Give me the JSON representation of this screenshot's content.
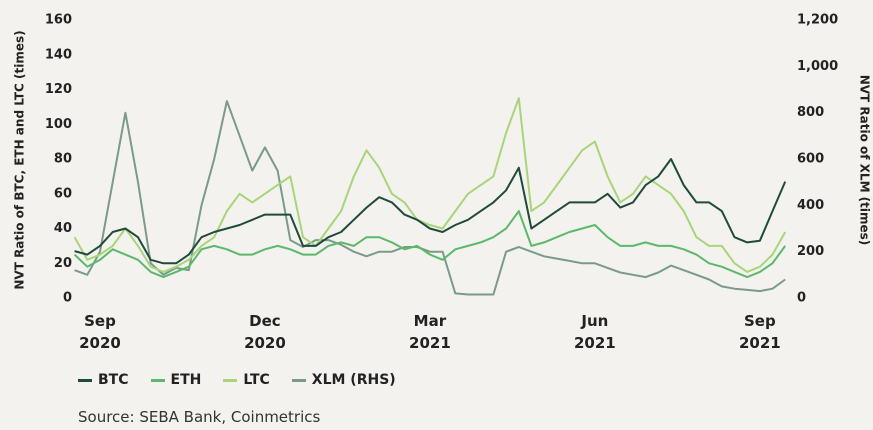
{
  "chart_data": {
    "type": "line",
    "y_label": "NVT Ratio of BTC, ETH and LTC (times)",
    "y2_label": "NVT Ratio of XLM (times)",
    "source": "Source: SEBA Bank, Coinmetrics",
    "categories": [
      null,
      null,
      "Sep 2020",
      null,
      null,
      null,
      null,
      null,
      null,
      null,
      null,
      null,
      null,
      null,
      null,
      "Dec 2020",
      null,
      null,
      null,
      null,
      null,
      null,
      null,
      null,
      null,
      null,
      null,
      null,
      "Mar 2021",
      null,
      null,
      null,
      null,
      null,
      null,
      null,
      null,
      null,
      null,
      null,
      null,
      "Jun 2021",
      null,
      null,
      null,
      null,
      null,
      null,
      null,
      null,
      null,
      null,
      null,
      null,
      "Sep 2021",
      null,
      null
    ],
    "ylim": [
      0,
      160
    ],
    "yticks": [
      0,
      20,
      40,
      60,
      80,
      100,
      120,
      140,
      160
    ],
    "y2lim": [
      0,
      1200
    ],
    "y2ticks": [
      0,
      200,
      400,
      600,
      800,
      {
        "value": 1000,
        "label": "1,000"
      },
      {
        "value": 1200,
        "label": "1,200"
      }
    ],
    "series": [
      {
        "name": "BTC",
        "color": "#1f4a3c",
        "values": [
          27,
          25,
          30,
          38,
          40,
          35,
          22,
          20,
          20,
          25,
          35,
          38,
          40,
          42,
          45,
          48,
          48,
          48,
          30,
          30,
          35,
          38,
          45,
          52,
          58,
          55,
          48,
          45,
          40,
          38,
          42,
          45,
          50,
          55,
          62,
          75,
          40,
          45,
          50,
          55,
          55,
          55,
          60,
          52,
          55,
          65,
          70,
          80,
          65,
          55,
          55,
          50,
          35,
          32,
          33,
          50,
          67
        ]
      },
      {
        "name": "ETH",
        "color": "#5cb86a",
        "values": [
          25,
          18,
          22,
          28,
          25,
          22,
          15,
          12,
          15,
          18,
          28,
          30,
          28,
          25,
          25,
          28,
          30,
          28,
          25,
          25,
          30,
          32,
          30,
          35,
          35,
          32,
          28,
          30,
          25,
          22,
          28,
          30,
          32,
          35,
          40,
          50,
          30,
          32,
          35,
          38,
          40,
          42,
          35,
          30,
          30,
          32,
          30,
          30,
          28,
          25,
          20,
          18,
          15,
          12,
          15,
          20,
          30
        ]
      },
      {
        "name": "LTC",
        "color": "#a8d47a",
        "values": [
          35,
          22,
          25,
          30,
          40,
          30,
          18,
          15,
          18,
          22,
          30,
          35,
          50,
          60,
          55,
          60,
          65,
          70,
          35,
          30,
          40,
          50,
          70,
          85,
          75,
          60,
          55,
          45,
          42,
          40,
          50,
          60,
          65,
          70,
          95,
          115,
          50,
          55,
          65,
          75,
          85,
          90,
          70,
          55,
          60,
          70,
          65,
          60,
          50,
          35,
          30,
          30,
          20,
          15,
          18,
          25,
          38
        ]
      },
      {
        "name": "XLM (RHS)",
        "color": "#7a9a8c",
        "axis": "y2",
        "values": [
          120,
          100,
          200,
          500,
          800,
          500,
          150,
          100,
          130,
          120,
          400,
          600,
          850,
          700,
          550,
          650,
          550,
          250,
          220,
          250,
          250,
          230,
          200,
          180,
          200,
          200,
          220,
          220,
          200,
          200,
          20,
          15,
          15,
          15,
          200,
          220,
          200,
          180,
          170,
          160,
          150,
          150,
          130,
          110,
          100,
          90,
          110,
          140,
          120,
          100,
          80,
          50,
          40,
          35,
          30,
          40,
          80
        ]
      }
    ]
  }
}
